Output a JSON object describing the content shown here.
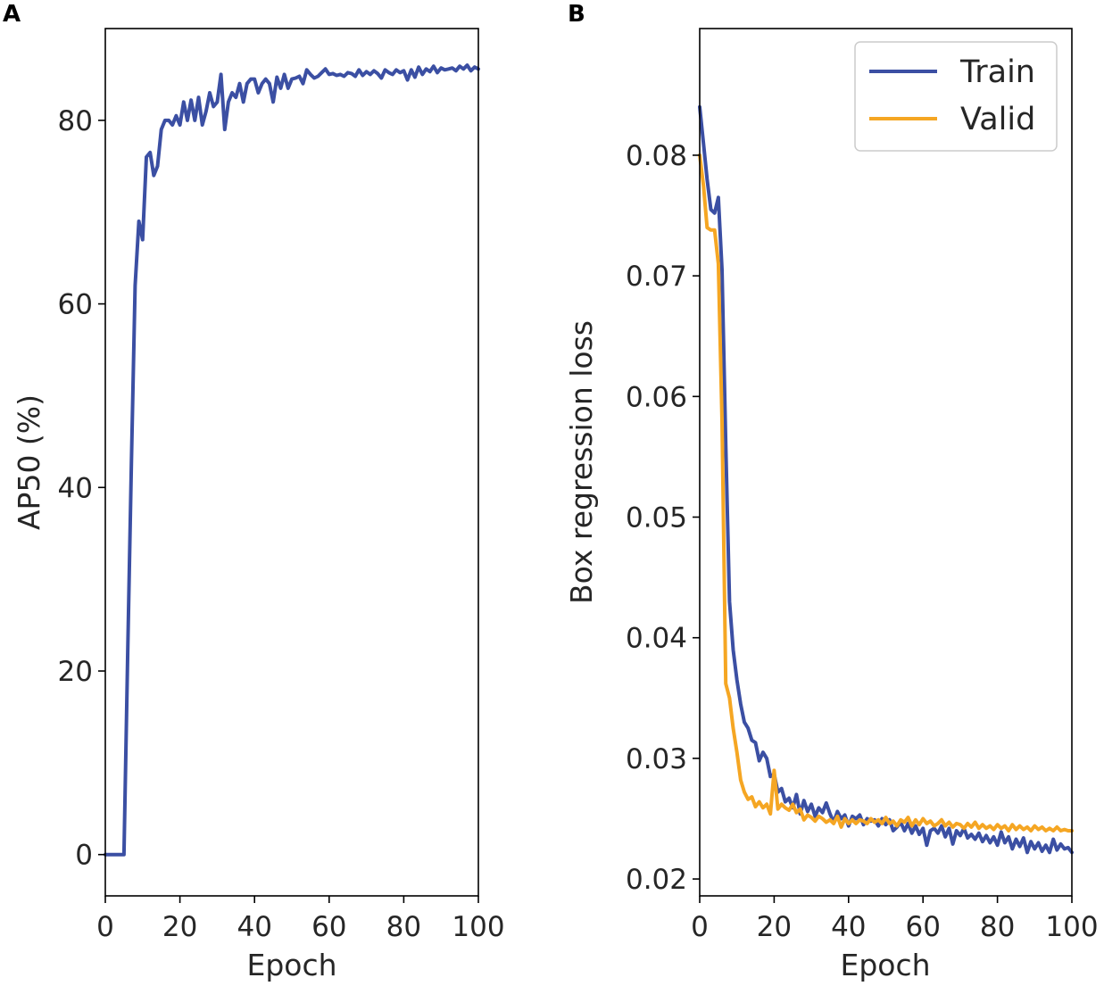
{
  "figure": {
    "background": "#ffffff"
  },
  "chart_data": [
    {
      "panel_label": "A",
      "type": "line",
      "title": "",
      "xlabel": "Epoch",
      "ylabel": "AP50 (%)",
      "xlim": [
        0,
        100
      ],
      "ylim": [
        -4.5,
        90
      ],
      "xticks": [
        0,
        20,
        40,
        60,
        80,
        100
      ],
      "xtick_labels": [
        "0",
        "20",
        "40",
        "60",
        "80",
        "100"
      ],
      "yticks": [
        0,
        20,
        40,
        60,
        80
      ],
      "ytick_labels": [
        "0",
        "20",
        "40",
        "60",
        "80"
      ],
      "grid": false,
      "legend": null,
      "series": [
        {
          "name": "AP50",
          "color": "#3b4fa3",
          "x": [
            0,
            1,
            2,
            3,
            4,
            5,
            6,
            7,
            8,
            9,
            10,
            11,
            12,
            13,
            14,
            15,
            16,
            17,
            18,
            19,
            20,
            21,
            22,
            23,
            24,
            25,
            26,
            27,
            28,
            29,
            30,
            31,
            32,
            33,
            34,
            35,
            36,
            37,
            38,
            39,
            40,
            41,
            42,
            43,
            44,
            45,
            46,
            47,
            48,
            49,
            50,
            51,
            52,
            53,
            54,
            55,
            56,
            57,
            58,
            59,
            60,
            61,
            62,
            63,
            64,
            65,
            66,
            67,
            68,
            69,
            70,
            71,
            72,
            73,
            74,
            75,
            76,
            77,
            78,
            79,
            80,
            81,
            82,
            83,
            84,
            85,
            86,
            87,
            88,
            89,
            90,
            91,
            92,
            93,
            94,
            95,
            96,
            97,
            98,
            99,
            100
          ],
          "y": [
            0,
            0,
            0,
            0,
            0,
            0,
            22,
            43,
            62,
            69,
            67,
            76,
            76.5,
            74,
            75,
            79,
            80,
            80,
            79.5,
            80.5,
            79.5,
            82,
            80,
            82.2,
            80,
            82.5,
            79.5,
            81,
            83,
            81.5,
            82,
            85,
            79,
            82,
            83,
            82.5,
            84,
            82,
            84,
            84.5,
            84.5,
            83,
            84,
            84.5,
            84,
            82,
            84.7,
            83.5,
            85,
            83.5,
            84.5,
            84.6,
            84.8,
            84,
            85.5,
            85,
            84.6,
            84.8,
            85.2,
            85.6,
            85,
            85.1,
            84.9,
            85,
            84.8,
            85.2,
            85.1,
            84.8,
            85.5,
            84.9,
            85.3,
            85.0,
            85.4,
            85.1,
            84.6,
            85.5,
            85.2,
            85.0,
            85.5,
            85.2,
            85.4,
            84.4,
            85.5,
            84.7,
            85.8,
            85.0,
            85.6,
            85.3,
            85.9,
            85.2,
            85.7,
            85.5,
            85.6,
            85.7,
            85.4,
            85.9,
            85.6,
            86.0,
            85.4,
            85.8,
            85.6
          ]
        }
      ]
    },
    {
      "panel_label": "B",
      "type": "line",
      "title": "",
      "xlabel": "Epoch",
      "ylabel": "Box regression loss",
      "xlim": [
        0,
        100
      ],
      "ylim": [
        0.0186,
        0.0905
      ],
      "xticks": [
        0,
        20,
        40,
        60,
        80,
        100
      ],
      "xtick_labels": [
        "0",
        "20",
        "40",
        "60",
        "80",
        "100"
      ],
      "yticks": [
        0.02,
        0.03,
        0.04,
        0.05,
        0.06,
        0.07,
        0.08
      ],
      "ytick_labels": [
        "0.02",
        "0.03",
        "0.04",
        "0.05",
        "0.06",
        "0.07",
        "0.08"
      ],
      "grid": false,
      "legend": {
        "placement": "top-right",
        "entries": [
          "Train",
          "Valid"
        ]
      },
      "series": [
        {
          "name": "Train",
          "color": "#3b4fa3",
          "x": [
            0,
            1,
            2,
            3,
            4,
            5,
            6,
            7,
            8,
            9,
            10,
            11,
            12,
            13,
            14,
            15,
            16,
            17,
            18,
            19,
            20,
            21,
            22,
            23,
            24,
            25,
            26,
            27,
            28,
            29,
            30,
            31,
            32,
            33,
            34,
            35,
            36,
            37,
            38,
            39,
            40,
            41,
            42,
            43,
            44,
            45,
            46,
            47,
            48,
            49,
            50,
            51,
            52,
            53,
            54,
            55,
            56,
            57,
            58,
            59,
            60,
            61,
            62,
            63,
            64,
            65,
            66,
            67,
            68,
            69,
            70,
            71,
            72,
            73,
            74,
            75,
            76,
            77,
            78,
            79,
            80,
            81,
            82,
            83,
            84,
            85,
            86,
            87,
            88,
            89,
            90,
            91,
            92,
            93,
            94,
            95,
            96,
            97,
            98,
            99,
            100
          ],
          "y": [
            0.084,
            0.081,
            0.078,
            0.0755,
            0.0752,
            0.0765,
            0.0705,
            0.056,
            0.043,
            0.039,
            0.0365,
            0.0345,
            0.033,
            0.0325,
            0.0315,
            0.0313,
            0.0298,
            0.0305,
            0.03,
            0.0285,
            0.0287,
            0.0272,
            0.0275,
            0.0264,
            0.0267,
            0.0259,
            0.027,
            0.0254,
            0.0265,
            0.0256,
            0.0262,
            0.0252,
            0.0259,
            0.0255,
            0.0263,
            0.0254,
            0.0247,
            0.0256,
            0.025,
            0.0253,
            0.0244,
            0.0252,
            0.025,
            0.0253,
            0.0245,
            0.025,
            0.0248,
            0.0249,
            0.0244,
            0.025,
            0.0245,
            0.0249,
            0.024,
            0.0243,
            0.0247,
            0.024,
            0.0246,
            0.0238,
            0.0244,
            0.0237,
            0.0242,
            0.0228,
            0.024,
            0.0242,
            0.0238,
            0.0244,
            0.0235,
            0.0242,
            0.0229,
            0.024,
            0.0236,
            0.0242,
            0.0234,
            0.0237,
            0.0233,
            0.0238,
            0.0231,
            0.0236,
            0.023,
            0.0235,
            0.0228,
            0.0239,
            0.023,
            0.0235,
            0.0225,
            0.0233,
            0.0227,
            0.0234,
            0.0222,
            0.0231,
            0.0225,
            0.023,
            0.0223,
            0.0228,
            0.0222,
            0.0233,
            0.0224,
            0.0229,
            0.0225,
            0.0226,
            0.0222
          ]
        },
        {
          "name": "Valid",
          "color": "#f5a623",
          "x": [
            0,
            1,
            2,
            3,
            4,
            5,
            6,
            7,
            8,
            9,
            10,
            11,
            12,
            13,
            14,
            15,
            16,
            17,
            18,
            19,
            20,
            21,
            22,
            23,
            24,
            25,
            26,
            27,
            28,
            29,
            30,
            31,
            32,
            33,
            34,
            35,
            36,
            37,
            38,
            39,
            40,
            41,
            42,
            43,
            44,
            45,
            46,
            47,
            48,
            49,
            50,
            51,
            52,
            53,
            54,
            55,
            56,
            57,
            58,
            59,
            60,
            61,
            62,
            63,
            64,
            65,
            66,
            67,
            68,
            69,
            70,
            71,
            72,
            73,
            74,
            75,
            76,
            77,
            78,
            79,
            80,
            81,
            82,
            83,
            84,
            85,
            86,
            87,
            88,
            89,
            90,
            91,
            92,
            93,
            94,
            95,
            96,
            97,
            98,
            99,
            100
          ],
          "y": [
            0.08,
            0.0775,
            0.074,
            0.0738,
            0.0738,
            0.071,
            0.058,
            0.0362,
            0.035,
            0.0325,
            0.0305,
            0.0282,
            0.0272,
            0.0266,
            0.0268,
            0.026,
            0.0264,
            0.0259,
            0.0262,
            0.0254,
            0.029,
            0.0258,
            0.0262,
            0.0259,
            0.0257,
            0.0262,
            0.0255,
            0.0258,
            0.0249,
            0.0253,
            0.0251,
            0.0248,
            0.0252,
            0.025,
            0.0247,
            0.0249,
            0.0246,
            0.0252,
            0.0243,
            0.025,
            0.0246,
            0.0249,
            0.0246,
            0.0249,
            0.0248,
            0.0246,
            0.025,
            0.0247,
            0.0249,
            0.0246,
            0.0251,
            0.0246,
            0.0248,
            0.0244,
            0.0249,
            0.0247,
            0.0251,
            0.0244,
            0.0249,
            0.0245,
            0.025,
            0.0246,
            0.0248,
            0.0244,
            0.0246,
            0.0249,
            0.0244,
            0.0247,
            0.0243,
            0.0246,
            0.0245,
            0.0242,
            0.0246,
            0.0243,
            0.0247,
            0.0242,
            0.0245,
            0.0242,
            0.0244,
            0.0241,
            0.0245,
            0.0242,
            0.0244,
            0.024,
            0.0245,
            0.0241,
            0.0244,
            0.0241,
            0.0243,
            0.024,
            0.0244,
            0.0241,
            0.0243,
            0.024,
            0.0242,
            0.024,
            0.0243,
            0.024,
            0.0241,
            0.024,
            0.024
          ]
        }
      ]
    }
  ]
}
